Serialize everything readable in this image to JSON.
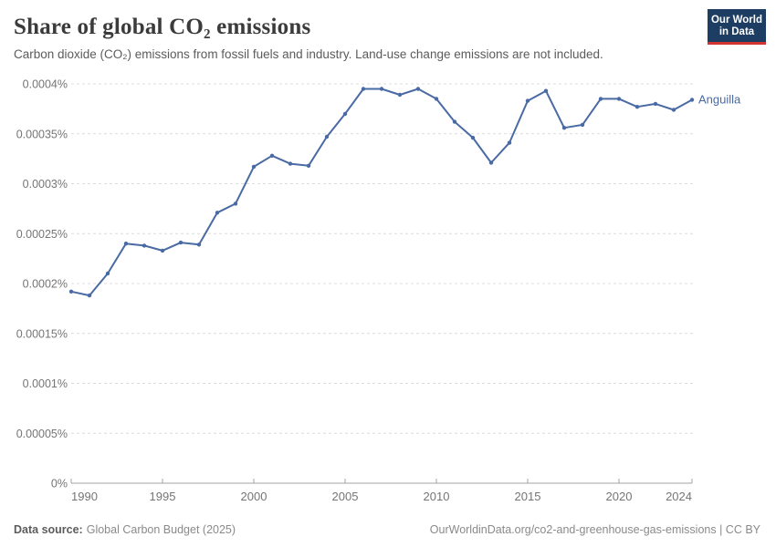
{
  "header": {
    "title": "Share of global CO₂ emissions",
    "subtitle": "Carbon dioxide (CO₂) emissions from fossil fuels and industry. Land-use change emissions are not included.",
    "logo": {
      "line1": "Our World",
      "line2": "in Data",
      "bg_color": "#1d3d63",
      "accent_color": "#d1332e",
      "text_color": "#ffffff"
    }
  },
  "chart_data": {
    "type": "line",
    "title": "Share of global CO₂ emissions",
    "xlabel": "",
    "ylabel": "",
    "unit": "%",
    "grid": "horizontal-dashed",
    "legend_position": "end-of-line-label",
    "xlim": [
      1990,
      2024
    ],
    "ylim": [
      0,
      0.0004
    ],
    "x_ticks": [
      1990,
      1995,
      2000,
      2005,
      2010,
      2015,
      2020,
      2024
    ],
    "y_ticks": [
      {
        "value": 0,
        "label": "0%"
      },
      {
        "value": 5e-05,
        "label": "0.00005%"
      },
      {
        "value": 0.0001,
        "label": "0.0001%"
      },
      {
        "value": 0.00015,
        "label": "0.00015%"
      },
      {
        "value": 0.0002,
        "label": "0.0002%"
      },
      {
        "value": 0.00025,
        "label": "0.00025%"
      },
      {
        "value": 0.0003,
        "label": "0.0003%"
      },
      {
        "value": 0.00035,
        "label": "0.00035%"
      },
      {
        "value": 0.0004,
        "label": "0.0004%"
      }
    ],
    "x": [
      1990,
      1991,
      1992,
      1993,
      1994,
      1995,
      1996,
      1997,
      1998,
      1999,
      2000,
      2001,
      2002,
      2003,
      2004,
      2005,
      2006,
      2007,
      2008,
      2009,
      2010,
      2011,
      2012,
      2013,
      2014,
      2015,
      2016,
      2017,
      2018,
      2019,
      2020,
      2021,
      2022,
      2023,
      2024
    ],
    "series": [
      {
        "name": "Anguilla",
        "color": "#4a6aa4",
        "values": [
          0.000192,
          0.000188,
          0.00021,
          0.00024,
          0.000238,
          0.000233,
          0.000241,
          0.000239,
          0.000271,
          0.00028,
          0.000317,
          0.000328,
          0.00032,
          0.000318,
          0.000347,
          0.00037,
          0.000395,
          0.000395,
          0.000389,
          0.000395,
          0.000385,
          0.000362,
          0.000346,
          0.000321,
          0.000341,
          0.000383,
          0.000393,
          0.000356,
          0.000359,
          0.000385,
          0.000385,
          0.000377,
          0.00038,
          0.000374,
          0.000384
        ]
      }
    ]
  },
  "footer": {
    "source_label": "Data source:",
    "source_value": "Global Carbon Budget (2025)",
    "attribution": "OurWorldinData.org/co2-and-greenhouse-gas-emissions | CC BY"
  },
  "colors": {
    "background": "#ffffff",
    "title": "#3b3b3b",
    "subtitle": "#5b5b5b",
    "grid": "#dcdcdc",
    "axis": "#a3a3a3",
    "tick_label": "#757575",
    "line": "#4a6aa4"
  }
}
